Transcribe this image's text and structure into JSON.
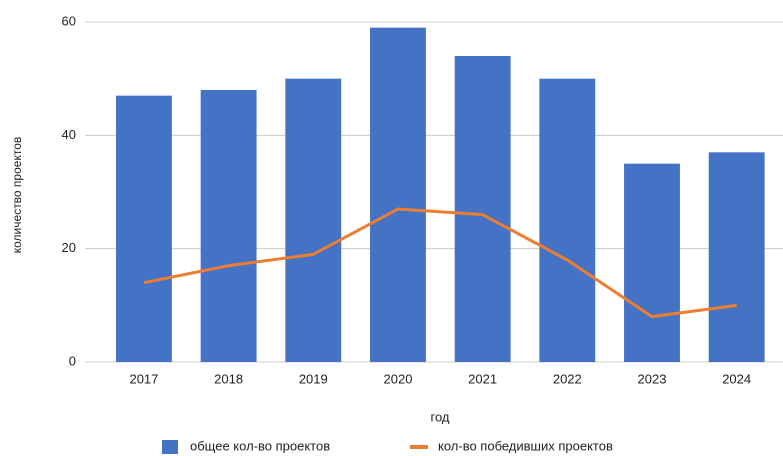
{
  "chart_data": {
    "type": "bar",
    "categories": [
      "2017",
      "2018",
      "2019",
      "2020",
      "2021",
      "2022",
      "2023",
      "2024"
    ],
    "series": [
      {
        "name": "общее кол-во проектов",
        "type": "bar",
        "color": "#4472c4",
        "values": [
          47,
          48,
          50,
          59,
          54,
          50,
          35,
          37
        ]
      },
      {
        "name": "кол-во победивших проектов",
        "type": "line",
        "color": "#ed7d31",
        "values": [
          14,
          17,
          19,
          27,
          26,
          18,
          8,
          10
        ]
      }
    ],
    "x_label": "год",
    "y_label": "количество проектов",
    "ylim": [
      0,
      60
    ],
    "yticks": [
      0,
      20,
      40,
      60
    ],
    "grid": true,
    "legend": "bottom"
  }
}
